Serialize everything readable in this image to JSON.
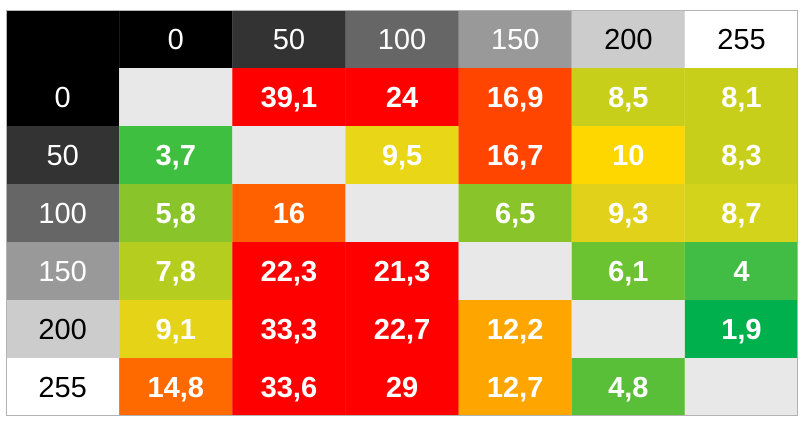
{
  "chart_data": {
    "type": "heatmap",
    "title": "",
    "xlabel": "",
    "ylabel": "",
    "grid": true,
    "legend": "none",
    "x_categories": [
      "0",
      "50",
      "100",
      "150",
      "200",
      "255"
    ],
    "y_categories": [
      "0",
      "50",
      "100",
      "150",
      "200",
      "255"
    ],
    "values": [
      [
        null,
        "39,1",
        "24",
        "16,9",
        "8,5",
        "8,1"
      ],
      [
        "3,7",
        null,
        "9,5",
        "16,7",
        "10",
        "8,3"
      ],
      [
        "5,8",
        "16",
        null,
        "6,5",
        "9,3",
        "8,7"
      ],
      [
        "7,8",
        "22,3",
        "21,3",
        null,
        "6,1",
        "4"
      ],
      [
        "9,1",
        "33,3",
        "22,7",
        "12,2",
        null,
        "1,9"
      ],
      [
        "14,8",
        "33,6",
        "29",
        "12,7",
        "4,8",
        null
      ]
    ],
    "cell_colors": [
      [
        "#e8e8e8",
        "#ff0000",
        "#ff0000",
        "#ff4500",
        "#c8cf1a",
        "#c8cf1a"
      ],
      [
        "#3fbf3f",
        "#e8e8e8",
        "#e8d617",
        "#ff4500",
        "#ffd700",
        "#c8cf1a"
      ],
      [
        "#88c42a",
        "#ff6000",
        "#e8e8e8",
        "#88c42a",
        "#e2d11a",
        "#d2d31a"
      ],
      [
        "#b4cd1f",
        "#ff0000",
        "#ff0000",
        "#e8e8e8",
        "#6cc332",
        "#41bd46"
      ],
      [
        "#e4d317",
        "#ff0000",
        "#ff0000",
        "#ffa500",
        "#e8e8e8",
        "#00b04c"
      ],
      [
        "#ff6a00",
        "#ff0000",
        "#ff0000",
        "#ffa500",
        "#5abf38",
        "#e8e8e8"
      ]
    ],
    "header_colors": [
      "#000000",
      "#333333",
      "#666666",
      "#999999",
      "#cccccc",
      "#ffffff"
    ],
    "header_text_colors": [
      "#ffffff",
      "#ffffff",
      "#ffffff",
      "#ffffff",
      "#000000",
      "#000000"
    ],
    "corner_color": "#000000",
    "border_color": "#b3b3b3"
  }
}
